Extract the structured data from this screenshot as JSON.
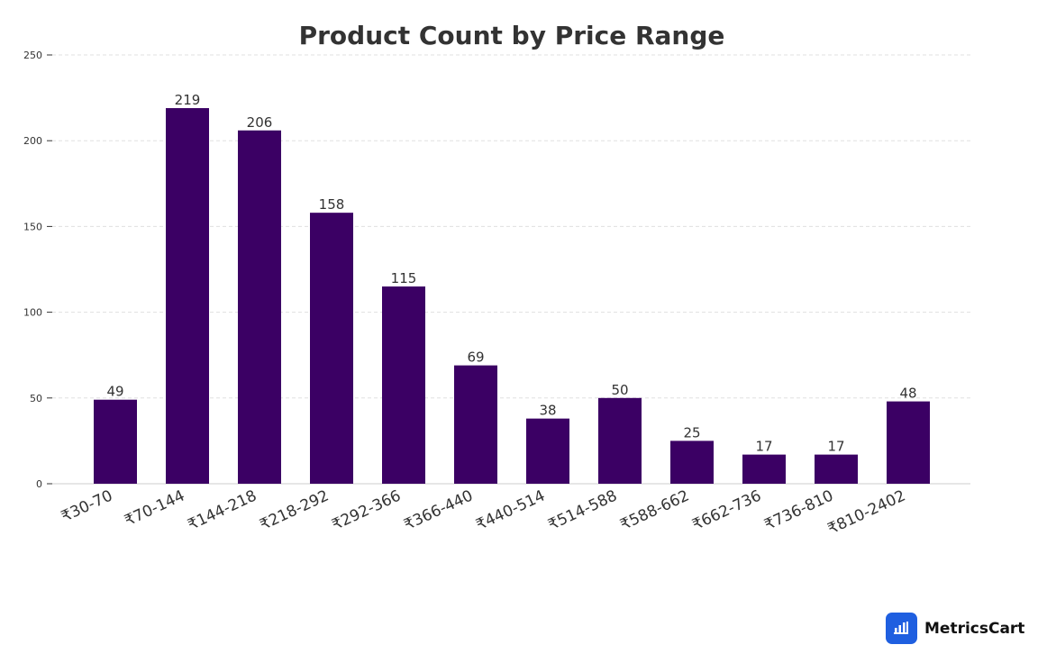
{
  "chart_data": {
    "type": "bar",
    "title": "Product Count by Price Range",
    "xlabel": "",
    "ylabel": "",
    "categories": [
      "₹30-70",
      "₹70-144",
      "₹144-218",
      "₹218-292",
      "₹292-366",
      "₹366-440",
      "₹440-514",
      "₹514-588",
      "₹588-662",
      "₹662-736",
      "₹736-810",
      "₹810-2402"
    ],
    "values": [
      49,
      219,
      206,
      158,
      115,
      69,
      38,
      50,
      25,
      17,
      17,
      48
    ],
    "ylim": [
      0,
      250
    ],
    "yticks": [
      0,
      50,
      100,
      150,
      200,
      250
    ],
    "grid": true,
    "bar_color": "#3b0064"
  },
  "branding": {
    "name": "MetricsCart",
    "icon": "bar-chart-cart-icon",
    "color": "#1f5fe0"
  }
}
